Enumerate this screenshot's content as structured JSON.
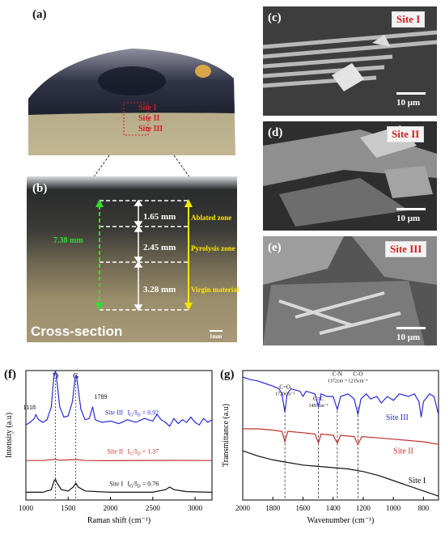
{
  "panels": {
    "a": "(a)",
    "b": "(b)",
    "c": "(c)",
    "d": "(d)",
    "e": "(e)",
    "f": "(f)",
    "g": "(g)"
  },
  "photo_a": {
    "site_labels": [
      "Site I",
      "Site II",
      "Site III"
    ],
    "colors": {
      "char": "#2b3042",
      "virgin": "#b7a98a",
      "site_label": "#cc1f1f"
    }
  },
  "photo_b": {
    "zones": [
      "Ablated zone",
      "Pyrolysis zone",
      "Virgin material"
    ],
    "thicknesses": [
      "1.65 mm",
      "2.45 mm",
      "3.28 mm"
    ],
    "total": "7.38 mm",
    "caption": "Cross-section",
    "scale": "1mm",
    "colors": {
      "zone_text": "#ffe600",
      "total_arrow": "#2fe02f"
    }
  },
  "sem": [
    {
      "site": "Site I",
      "scale": "10 μm"
    },
    {
      "site": "Site II",
      "scale": "10 μm"
    },
    {
      "site": "Site III",
      "scale": "10 μm"
    }
  ],
  "chart_data": [
    {
      "type": "line",
      "panel": "(f)",
      "xlabel": "Raman shift (cm⁻¹)",
      "ylabel": "Intensity (a.u)",
      "xlim": [
        1000,
        3200
      ],
      "xticks": [
        1000,
        1500,
        2000,
        2500,
        3000
      ],
      "peak_labels": [
        {
          "text": "D",
          "x": 1350
        },
        {
          "text": "G",
          "x": 1590
        },
        {
          "text": "1118",
          "x": 1118
        },
        {
          "text": "1789",
          "x": 1789
        }
      ],
      "series": [
        {
          "name": "Site III",
          "ratio": "0.92",
          "color": "#2b2bd6",
          "points": [
            [
              1000,
              0.58
            ],
            [
              1050,
              0.6
            ],
            [
              1100,
              0.63
            ],
            [
              1118,
              0.66
            ],
            [
              1150,
              0.62
            ],
            [
              1200,
              0.6
            ],
            [
              1250,
              0.62
            ],
            [
              1300,
              0.72
            ],
            [
              1330,
              0.95
            ],
            [
              1350,
              1.0
            ],
            [
              1370,
              0.9
            ],
            [
              1400,
              0.72
            ],
            [
              1450,
              0.64
            ],
            [
              1500,
              0.65
            ],
            [
              1550,
              0.76
            ],
            [
              1580,
              0.93
            ],
            [
              1595,
              0.97
            ],
            [
              1610,
              0.9
            ],
            [
              1650,
              0.7
            ],
            [
              1700,
              0.62
            ],
            [
              1750,
              0.63
            ],
            [
              1789,
              0.72
            ],
            [
              1820,
              0.62
            ],
            [
              1900,
              0.6
            ],
            [
              2000,
              0.61
            ],
            [
              2100,
              0.59
            ],
            [
              2200,
              0.62
            ],
            [
              2300,
              0.6
            ],
            [
              2400,
              0.63
            ],
            [
              2500,
              0.61
            ],
            [
              2550,
              0.66
            ],
            [
              2600,
              0.62
            ],
            [
              2650,
              0.6
            ],
            [
              2700,
              0.57
            ],
            [
              2750,
              0.63
            ],
            [
              2800,
              0.59
            ],
            [
              2850,
              0.62
            ],
            [
              2900,
              0.6
            ],
            [
              2950,
              0.64
            ],
            [
              3000,
              0.6
            ],
            [
              3050,
              0.58
            ],
            [
              3100,
              0.63
            ],
            [
              3150,
              0.6
            ],
            [
              3200,
              0.62
            ]
          ]
        },
        {
          "name": "Site II",
          "ratio": "1.37",
          "color": "#c0302b",
          "points": [
            [
              1000,
              0.305
            ],
            [
              1200,
              0.305
            ],
            [
              1350,
              0.315
            ],
            [
              1400,
              0.307
            ],
            [
              1590,
              0.313
            ],
            [
              1700,
              0.305
            ],
            [
              2000,
              0.304
            ],
            [
              2700,
              0.306
            ],
            [
              3200,
              0.305
            ]
          ]
        },
        {
          "name": "Site I",
          "ratio": "0.76",
          "color": "#111111",
          "points": [
            [
              1000,
              0.06
            ],
            [
              1200,
              0.06
            ],
            [
              1300,
              0.08
            ],
            [
              1335,
              0.15
            ],
            [
              1350,
              0.16
            ],
            [
              1370,
              0.13
            ],
            [
              1420,
              0.08
            ],
            [
              1500,
              0.07
            ],
            [
              1560,
              0.1
            ],
            [
              1590,
              0.13
            ],
            [
              1620,
              0.1
            ],
            [
              1700,
              0.07
            ],
            [
              2000,
              0.06
            ],
            [
              2500,
              0.06
            ],
            [
              2650,
              0.08
            ],
            [
              2700,
              0.1
            ],
            [
              2750,
              0.08
            ],
            [
              2900,
              0.065
            ],
            [
              3200,
              0.06
            ]
          ]
        }
      ]
    },
    {
      "type": "line",
      "panel": "(g)",
      "xlabel": "Wavenumber (cm⁻¹)",
      "ylabel": "Transmittance (a.u)",
      "xlim": [
        2000,
        700
      ],
      "xticks": [
        2000,
        1800,
        1600,
        1400,
        1200,
        1000,
        800
      ],
      "bands": [
        {
          "label": "C=O",
          "value": "1720cm⁻¹",
          "x": 1720
        },
        {
          "label": "C=C",
          "value": "1497cm⁻¹",
          "x": 1497
        },
        {
          "label": "C-N",
          "value": "1372cm⁻¹",
          "x": 1372
        },
        {
          "label": "C-O",
          "value": "1235cm⁻¹",
          "x": 1235
        }
      ],
      "series": [
        {
          "name": "Site III",
          "color": "#2b2bd6",
          "points": [
            [
              2000,
              0.95
            ],
            [
              1950,
              0.93
            ],
            [
              1900,
              0.92
            ],
            [
              1850,
              0.9
            ],
            [
              1800,
              0.88
            ],
            [
              1760,
              0.86
            ],
            [
              1740,
              0.82
            ],
            [
              1720,
              0.68
            ],
            [
              1705,
              0.82
            ],
            [
              1680,
              0.86
            ],
            [
              1620,
              0.84
            ],
            [
              1600,
              0.8
            ],
            [
              1580,
              0.84
            ],
            [
              1520,
              0.82
            ],
            [
              1497,
              0.72
            ],
            [
              1480,
              0.82
            ],
            [
              1440,
              0.8
            ],
            [
              1400,
              0.8
            ],
            [
              1372,
              0.7
            ],
            [
              1350,
              0.8
            ],
            [
              1300,
              0.82
            ],
            [
              1260,
              0.78
            ],
            [
              1235,
              0.66
            ],
            [
              1215,
              0.78
            ],
            [
              1180,
              0.82
            ],
            [
              1150,
              0.78
            ],
            [
              1110,
              0.8
            ],
            [
              1080,
              0.75
            ],
            [
              1040,
              0.8
            ],
            [
              1000,
              0.77
            ],
            [
              960,
              0.82
            ],
            [
              900,
              0.8
            ],
            [
              860,
              0.82
            ],
            [
              830,
              0.76
            ],
            [
              815,
              0.64
            ],
            [
              800,
              0.76
            ],
            [
              760,
              0.82
            ],
            [
              730,
              0.8
            ],
            [
              700,
              0.66
            ]
          ]
        },
        {
          "name": "Site II",
          "color": "#c0302b",
          "points": [
            [
              2000,
              0.55
            ],
            [
              1900,
              0.55
            ],
            [
              1800,
              0.54
            ],
            [
              1740,
              0.53
            ],
            [
              1720,
              0.45
            ],
            [
              1700,
              0.53
            ],
            [
              1600,
              0.52
            ],
            [
              1520,
              0.51
            ],
            [
              1497,
              0.44
            ],
            [
              1480,
              0.51
            ],
            [
              1400,
              0.5
            ],
            [
              1372,
              0.44
            ],
            [
              1350,
              0.5
            ],
            [
              1260,
              0.49
            ],
            [
              1235,
              0.43
            ],
            [
              1210,
              0.49
            ],
            [
              1100,
              0.48
            ],
            [
              1000,
              0.47
            ],
            [
              900,
              0.46
            ],
            [
              800,
              0.45
            ],
            [
              700,
              0.43
            ]
          ]
        },
        {
          "name": "Site I",
          "color": "#111111",
          "points": [
            [
              2000,
              0.38
            ],
            [
              1900,
              0.34
            ],
            [
              1800,
              0.31
            ],
            [
              1700,
              0.29
            ],
            [
              1600,
              0.27
            ],
            [
              1500,
              0.26
            ],
            [
              1400,
              0.25
            ],
            [
              1300,
              0.24
            ],
            [
              1200,
              0.22
            ],
            [
              1100,
              0.19
            ],
            [
              1000,
              0.15
            ],
            [
              900,
              0.11
            ],
            [
              800,
              0.07
            ],
            [
              700,
              0.03
            ]
          ]
        }
      ]
    }
  ]
}
